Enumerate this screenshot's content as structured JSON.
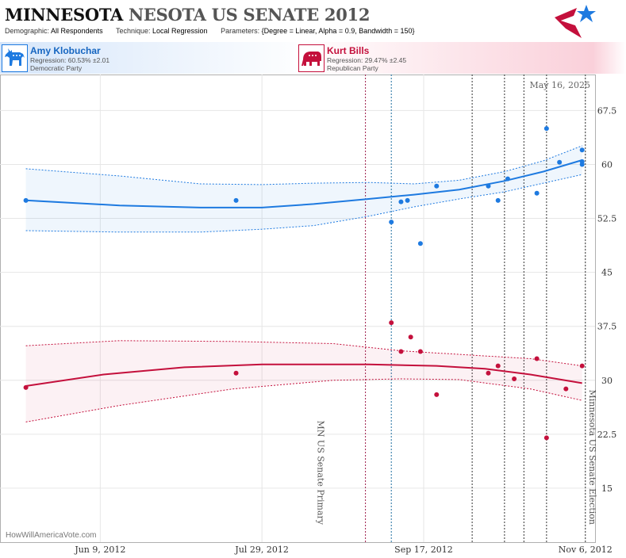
{
  "header": {
    "title_strong": "MINNESOTA",
    "title_rest": "NESOTA US SENATE 2012",
    "demographic_label": "Demographic:",
    "demographic_value": "All Respondents",
    "technique_label": "Technique:",
    "technique_value": "Local Regression",
    "parameters_label": "Parameters:",
    "parameters_value": "{Degree = Linear, Alpha = 0.9, Bandwidth = 150}"
  },
  "candidates": {
    "dem": {
      "name": "Amy Klobuchar",
      "regression": "Regression: 60.53% ±2.01",
      "party": "Democratic Party",
      "icon": "donkey-icon",
      "color": "#1e7ae0"
    },
    "rep": {
      "name": "Kurt Bills",
      "regression": "Regression: 29.47% ±2.45",
      "party": "Republican Party",
      "icon": "elephant-icon",
      "color": "#c4103c"
    }
  },
  "chart_data": {
    "type": "scatter",
    "date_label": "May 16, 2025",
    "watermark": "HowWillAmericaVote.com",
    "x_range": [
      "2012-05-09",
      "2012-11-09"
    ],
    "ylim": [
      7.5,
      72.5
    ],
    "y_ticks": [
      15,
      22.5,
      30,
      37.5,
      45,
      52.5,
      60,
      67.5
    ],
    "x_ticks": [
      {
        "date": "2012-06-09",
        "label": "Jun 9, 2012"
      },
      {
        "date": "2012-07-29",
        "label": "Jul 29, 2012"
      },
      {
        "date": "2012-09-17",
        "label": "Sep 17, 2012"
      },
      {
        "date": "2012-11-06",
        "label": "Nov 6, 2012"
      }
    ],
    "events": [
      {
        "date": "2012-08-14",
        "label": "MN US Senate Primary"
      },
      {
        "date": "2012-11-06",
        "label": "Minnesota US Senate Election"
      }
    ],
    "markers": [
      {
        "date": "2012-08-30",
        "color": "#9c1d4a"
      },
      {
        "date": "2012-09-07",
        "color": "#1e6fa0"
      },
      {
        "date": "2012-10-02",
        "color": "#333333"
      },
      {
        "date": "2012-10-12",
        "color": "#333333"
      },
      {
        "date": "2012-10-18",
        "color": "#333333"
      },
      {
        "date": "2012-10-25",
        "color": "#333333"
      },
      {
        "date": "2012-11-06",
        "color": "#333333"
      }
    ],
    "series": [
      {
        "name": "Amy Klobuchar",
        "color": "#1e7ae0",
        "points": [
          [
            "2012-05-17",
            55
          ],
          [
            "2012-07-21",
            55
          ],
          [
            "2012-09-07",
            52
          ],
          [
            "2012-09-10",
            54.8
          ],
          [
            "2012-09-12",
            55
          ],
          [
            "2012-09-16",
            49
          ],
          [
            "2012-09-21",
            57
          ],
          [
            "2012-10-07",
            57
          ],
          [
            "2012-10-10",
            55
          ],
          [
            "2012-10-13",
            58
          ],
          [
            "2012-10-22",
            56
          ],
          [
            "2012-10-25",
            65
          ],
          [
            "2012-10-29",
            60.3
          ],
          [
            "2012-11-05",
            62
          ],
          [
            "2012-11-05",
            60.4
          ],
          [
            "2012-11-05",
            60
          ]
        ],
        "trend": [
          [
            "2012-05-17",
            55
          ],
          [
            "2012-06-15",
            54.3
          ],
          [
            "2012-07-10",
            54
          ],
          [
            "2012-07-29",
            54
          ],
          [
            "2012-08-14",
            54.5
          ],
          [
            "2012-08-31",
            55.2
          ],
          [
            "2012-09-14",
            55.8
          ],
          [
            "2012-09-28",
            56.5
          ],
          [
            "2012-10-12",
            57.7
          ],
          [
            "2012-10-24",
            59
          ],
          [
            "2012-11-05",
            60.6
          ]
        ],
        "upper": [
          [
            "2012-05-17",
            59.4
          ],
          [
            "2012-06-15",
            58.4
          ],
          [
            "2012-07-10",
            57.3
          ],
          [
            "2012-07-29",
            57.2
          ],
          [
            "2012-08-14",
            57.4
          ],
          [
            "2012-08-31",
            57.5
          ],
          [
            "2012-09-14",
            57.3
          ],
          [
            "2012-09-28",
            57.8
          ],
          [
            "2012-10-12",
            59
          ],
          [
            "2012-10-24",
            60.5
          ],
          [
            "2012-11-05",
            62.6
          ]
        ],
        "lower": [
          [
            "2012-05-17",
            50.8
          ],
          [
            "2012-06-15",
            50.6
          ],
          [
            "2012-07-10",
            50.6
          ],
          [
            "2012-07-29",
            51
          ],
          [
            "2012-08-14",
            51.5
          ],
          [
            "2012-08-31",
            52.8
          ],
          [
            "2012-09-14",
            54.1
          ],
          [
            "2012-09-28",
            55.2
          ],
          [
            "2012-10-12",
            56.2
          ],
          [
            "2012-10-24",
            57.4
          ],
          [
            "2012-11-05",
            58.6
          ]
        ]
      },
      {
        "name": "Kurt Bills",
        "color": "#c4103c",
        "points": [
          [
            "2012-05-17",
            29
          ],
          [
            "2012-07-21",
            31
          ],
          [
            "2012-09-07",
            38
          ],
          [
            "2012-09-10",
            34
          ],
          [
            "2012-09-13",
            36
          ],
          [
            "2012-09-16",
            34
          ],
          [
            "2012-09-21",
            28
          ],
          [
            "2012-10-07",
            31
          ],
          [
            "2012-10-10",
            32
          ],
          [
            "2012-10-15",
            30.2
          ],
          [
            "2012-10-22",
            33
          ],
          [
            "2012-10-25",
            22
          ],
          [
            "2012-10-31",
            28.8
          ],
          [
            "2012-11-05",
            32
          ]
        ],
        "trend": [
          [
            "2012-05-17",
            29.2
          ],
          [
            "2012-06-10",
            30.8
          ],
          [
            "2012-07-05",
            31.8
          ],
          [
            "2012-07-29",
            32.2
          ],
          [
            "2012-08-31",
            32.2
          ],
          [
            "2012-09-21",
            32
          ],
          [
            "2012-10-06",
            31.6
          ],
          [
            "2012-10-20",
            30.8
          ],
          [
            "2012-11-05",
            29.6
          ]
        ],
        "upper": [
          [
            "2012-05-17",
            34.8
          ],
          [
            "2012-06-15",
            35.5
          ],
          [
            "2012-07-20",
            35.4
          ],
          [
            "2012-08-20",
            35.1
          ],
          [
            "2012-09-10",
            34.1
          ],
          [
            "2012-09-28",
            33.6
          ],
          [
            "2012-10-20",
            33
          ],
          [
            "2012-11-05",
            32
          ]
        ],
        "lower": [
          [
            "2012-05-17",
            24.2
          ],
          [
            "2012-06-15",
            26.5
          ],
          [
            "2012-07-20",
            28.8
          ],
          [
            "2012-08-20",
            30
          ],
          [
            "2012-09-10",
            30.2
          ],
          [
            "2012-09-28",
            30.1
          ],
          [
            "2012-10-20",
            28.8
          ],
          [
            "2012-11-05",
            27.2
          ]
        ]
      }
    ]
  }
}
